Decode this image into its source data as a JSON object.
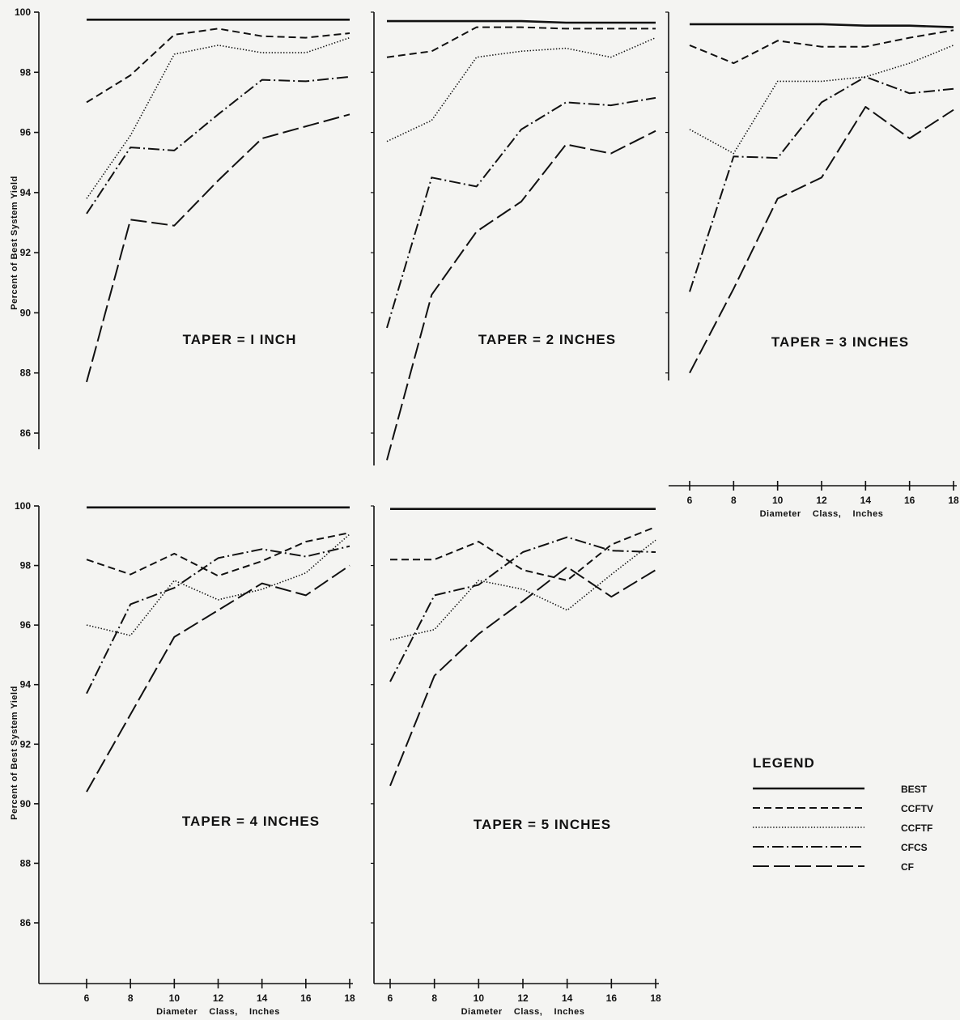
{
  "line_styles": {
    "BEST": {
      "dash": "",
      "width": 2.6
    },
    "CCFTV": {
      "dash": "9 5",
      "width": 2
    },
    "CCFTF": {
      "dash": "1.4 2.2",
      "width": 1.6
    },
    "CFCS": {
      "dash": "14 4 2 4",
      "width": 2
    },
    "CF": {
      "dash": "20 6",
      "width": 2
    }
  },
  "legend": {
    "title": "LEGEND",
    "entries": [
      "BEST",
      "CCFTV",
      "CCFTF",
      "CFCS",
      "CF"
    ]
  },
  "chart_data": [
    {
      "type": "line",
      "title": "TAPER = I INCH",
      "ylabel": "Percent of Best System Yield",
      "xlabel": "",
      "ylim": [
        85,
        100
      ],
      "yticks": [
        86,
        88,
        90,
        92,
        94,
        96,
        98,
        100
      ],
      "xticks": [],
      "series": [
        {
          "name": "BEST",
          "x": [
            6,
            8,
            10,
            12,
            14,
            16,
            18
          ],
          "values": [
            99.75,
            99.75,
            99.75,
            99.75,
            99.75,
            99.75,
            99.75
          ]
        },
        {
          "name": "CCFTV",
          "x": [
            6,
            8,
            10,
            12,
            14,
            16,
            18
          ],
          "values": [
            97.0,
            97.9,
            99.25,
            99.45,
            99.2,
            99.15,
            99.3
          ]
        },
        {
          "name": "CCFTF",
          "x": [
            6,
            8,
            10,
            12,
            14,
            16,
            18
          ],
          "values": [
            93.8,
            95.9,
            98.6,
            98.9,
            98.65,
            98.65,
            99.15
          ]
        },
        {
          "name": "CFCS",
          "x": [
            6,
            8,
            10,
            12,
            14,
            16,
            18
          ],
          "values": [
            93.3,
            95.5,
            95.4,
            96.6,
            97.75,
            97.7,
            97.85
          ]
        },
        {
          "name": "CF",
          "x": [
            6,
            8,
            10,
            12,
            14,
            16,
            18
          ],
          "values": [
            87.7,
            93.1,
            92.9,
            94.4,
            95.8,
            96.2,
            96.6
          ]
        }
      ]
    },
    {
      "type": "line",
      "title": "TAPER = 2 INCHES",
      "ylabel": "",
      "xlabel": "",
      "ylim": [
        85,
        100
      ],
      "yticks": [],
      "xticks": [],
      "series": [
        {
          "name": "BEST",
          "x": [
            6,
            8,
            10,
            12,
            14,
            16,
            18
          ],
          "values": [
            99.7,
            99.7,
            99.7,
            99.7,
            99.65,
            99.65,
            99.65
          ]
        },
        {
          "name": "CCFTV",
          "x": [
            6,
            8,
            10,
            12,
            14,
            16,
            18
          ],
          "values": [
            98.5,
            98.7,
            99.5,
            99.5,
            99.45,
            99.45,
            99.45
          ]
        },
        {
          "name": "CCFTF",
          "x": [
            6,
            8,
            10,
            12,
            14,
            16,
            18
          ],
          "values": [
            95.7,
            96.4,
            98.5,
            98.7,
            98.8,
            98.5,
            99.15
          ]
        },
        {
          "name": "CFCS",
          "x": [
            6,
            8,
            10,
            12,
            14,
            16,
            18
          ],
          "values": [
            89.5,
            94.5,
            94.2,
            96.1,
            97.0,
            96.9,
            97.15
          ]
        },
        {
          "name": "CF",
          "x": [
            6,
            8,
            10,
            12,
            14,
            16,
            18
          ],
          "values": [
            85.1,
            90.6,
            92.7,
            93.7,
            95.6,
            95.3,
            96.05
          ]
        }
      ]
    },
    {
      "type": "line",
      "title": "TAPER = 3 INCHES",
      "ylabel": "",
      "xlabel": "Diameter Class, Inches",
      "ylim": [
        85,
        100
      ],
      "yticks": [],
      "xticks": [
        6,
        8,
        10,
        12,
        14,
        16,
        18
      ],
      "series": [
        {
          "name": "BEST",
          "x": [
            6,
            8,
            10,
            12,
            14,
            16,
            18
          ],
          "values": [
            99.6,
            99.6,
            99.6,
            99.6,
            99.55,
            99.55,
            99.5
          ]
        },
        {
          "name": "CCFTV",
          "x": [
            6,
            8,
            10,
            12,
            14,
            16,
            18
          ],
          "values": [
            98.9,
            98.3,
            99.05,
            98.85,
            98.85,
            99.15,
            99.4
          ]
        },
        {
          "name": "CCFTF",
          "x": [
            6,
            8,
            10,
            12,
            14,
            16,
            18
          ],
          "values": [
            96.1,
            95.3,
            97.7,
            97.7,
            97.85,
            98.3,
            98.9
          ]
        },
        {
          "name": "CFCS",
          "x": [
            6,
            8,
            10,
            12,
            14,
            16,
            18
          ],
          "values": [
            90.7,
            95.2,
            95.15,
            97.0,
            97.85,
            97.3,
            97.45
          ]
        },
        {
          "name": "CF",
          "x": [
            6,
            8,
            10,
            12,
            14,
            16,
            18
          ],
          "values": [
            88.0,
            90.8,
            93.8,
            94.5,
            96.85,
            95.8,
            96.75
          ]
        }
      ]
    },
    {
      "type": "line",
      "title": "TAPER = 4 INCHES",
      "ylabel": "Percent of Best System Yield",
      "xlabel": "Diameter Class, Inches",
      "ylim": [
        84,
        100
      ],
      "yticks": [
        86,
        88,
        90,
        92,
        94,
        96,
        98,
        100
      ],
      "xticks": [
        6,
        8,
        10,
        12,
        14,
        16,
        18
      ],
      "series": [
        {
          "name": "BEST",
          "x": [
            6,
            8,
            10,
            12,
            14,
            16,
            18
          ],
          "values": [
            99.95,
            99.95,
            99.95,
            99.95,
            99.95,
            99.95,
            99.95
          ]
        },
        {
          "name": "CCFTV",
          "x": [
            6,
            8,
            10,
            12,
            14,
            16,
            18
          ],
          "values": [
            98.2,
            97.7,
            98.4,
            97.65,
            98.15,
            98.8,
            99.1
          ]
        },
        {
          "name": "CCFTF",
          "x": [
            6,
            8,
            10,
            12,
            14,
            16,
            18
          ],
          "values": [
            96.0,
            95.65,
            97.5,
            96.85,
            97.2,
            97.75,
            99.05
          ]
        },
        {
          "name": "CFCS",
          "x": [
            6,
            8,
            10,
            12,
            14,
            16,
            18
          ],
          "values": [
            93.7,
            96.7,
            97.25,
            98.25,
            98.55,
            98.3,
            98.65
          ]
        },
        {
          "name": "CF",
          "x": [
            6,
            8,
            10,
            12,
            14,
            16,
            18
          ],
          "values": [
            90.4,
            93.0,
            95.6,
            96.5,
            97.4,
            97.0,
            98.0
          ]
        }
      ]
    },
    {
      "type": "line",
      "title": "TAPER = 5 INCHES",
      "ylabel": "",
      "xlabel": "Diameter Class, Inches",
      "ylim": [
        84,
        100
      ],
      "yticks": [],
      "xticks": [
        6,
        8,
        10,
        12,
        14,
        16,
        18
      ],
      "series": [
        {
          "name": "BEST",
          "x": [
            6,
            8,
            10,
            12,
            14,
            16,
            18
          ],
          "values": [
            99.9,
            99.9,
            99.9,
            99.9,
            99.9,
            99.9,
            99.9
          ]
        },
        {
          "name": "CCFTV",
          "x": [
            6,
            8,
            10,
            12,
            14,
            16,
            18
          ],
          "values": [
            98.2,
            98.2,
            98.8,
            97.85,
            97.5,
            98.7,
            99.3
          ]
        },
        {
          "name": "CCFTF",
          "x": [
            6,
            8,
            10,
            12,
            14,
            16,
            18
          ],
          "values": [
            95.5,
            95.85,
            97.5,
            97.2,
            96.5,
            97.7,
            98.85
          ]
        },
        {
          "name": "CFCS",
          "x": [
            6,
            8,
            10,
            12,
            14,
            16,
            18
          ],
          "values": [
            94.1,
            97.0,
            97.35,
            98.45,
            98.95,
            98.5,
            98.45
          ]
        },
        {
          "name": "CF",
          "x": [
            6,
            8,
            10,
            12,
            14,
            16,
            18
          ],
          "values": [
            90.6,
            94.3,
            95.7,
            96.8,
            97.95,
            96.95,
            97.85
          ]
        }
      ]
    }
  ]
}
